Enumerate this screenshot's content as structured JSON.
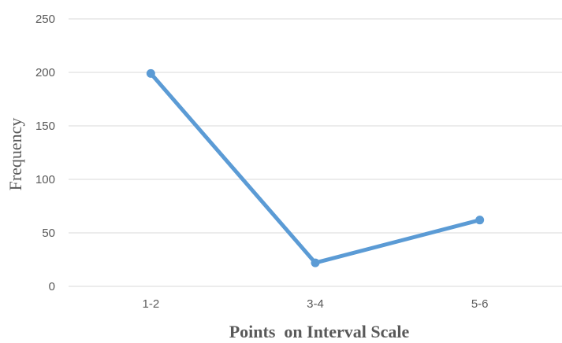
{
  "chart_data": {
    "type": "line",
    "title": "",
    "xlabel": "Points  on Interval Scale",
    "ylabel": "Frequency",
    "categories": [
      "1-2",
      "3-4",
      "5-6"
    ],
    "series": [
      {
        "values": [
          199,
          22,
          62
        ],
        "color": "#5B9BD5"
      }
    ],
    "ylim": [
      0,
      250
    ],
    "yticks": [
      "0",
      "50",
      "100",
      "150",
      "200",
      "250"
    ],
    "grid": true,
    "legend": "none"
  },
  "colors": {
    "line": "#5B9BD5",
    "grid": "#D9D9D9",
    "text": "#595959"
  }
}
